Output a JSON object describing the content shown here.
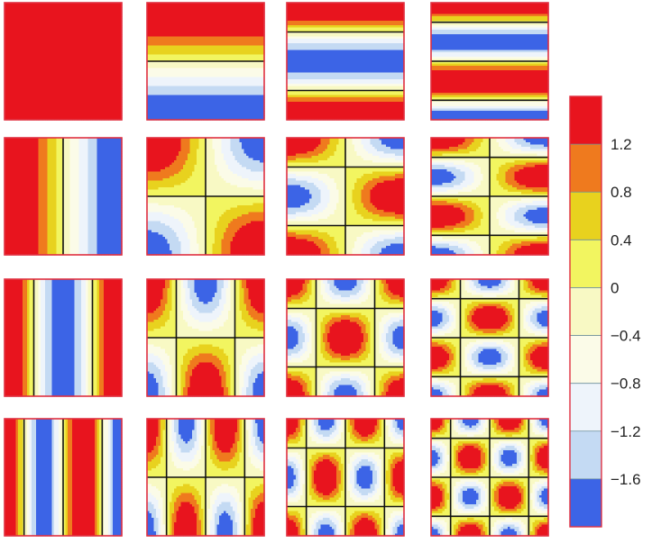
{
  "figure": {
    "grid_rows": 4,
    "grid_cols": 4,
    "panel_border_color": "#e03040",
    "contour_line_color": "#111111"
  },
  "colorbar": {
    "tick_labels": [
      "1.2",
      "0.8",
      "0.4",
      "0",
      "−0.4",
      "−0.8",
      "−1.2",
      "−1.6"
    ],
    "levels": [
      2.0,
      1.2,
      0.8,
      0.4,
      0.0,
      -0.4,
      -0.8,
      -1.2,
      -1.6,
      -2.0
    ],
    "colors": [
      "#e8141e",
      "#ef7a1e",
      "#e8d21e",
      "#f2f560",
      "#f8f9c4",
      "#fbfbe8",
      "#eef4fb",
      "#c4daf3",
      "#3c64e6"
    ]
  },
  "panels": {
    "description": "cosine mode shapes cos(m*pi*x)*cos(n*pi*y), m = column index 0..3 (horizontal), n = row-frequency index 0..3 (vertical), scaled by 2",
    "amplitude": 2.0
  }
}
